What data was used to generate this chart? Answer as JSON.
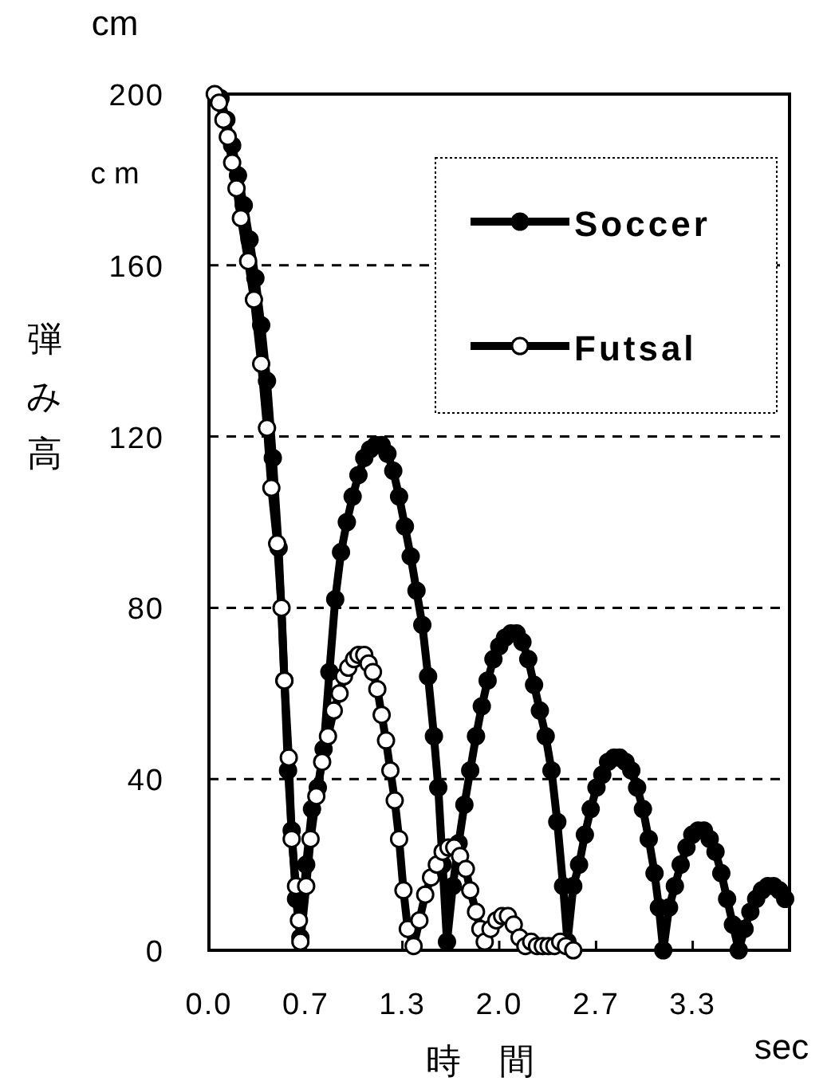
{
  "chart_data": {
    "type": "line",
    "xlabel": "時間",
    "ylabel": "弾み高",
    "annotations": [
      "cm",
      "c m",
      "sec"
    ],
    "xlim": [
      0,
      4
    ],
    "ylim": [
      0,
      200
    ],
    "xticks": [
      {
        "value": 0,
        "label": "0.0"
      },
      {
        "value": 0.667,
        "label": "0.7"
      },
      {
        "value": 1.333,
        "label": "1.3"
      },
      {
        "value": 2,
        "label": "2.0"
      },
      {
        "value": 2.667,
        "label": "2.7"
      },
      {
        "value": 3.333,
        "label": "3.3"
      }
    ],
    "yticks": [
      0,
      40,
      80,
      120,
      160,
      200
    ],
    "grid": "y",
    "legend": "top right",
    "marker": "circle",
    "line_style": "solid",
    "series": [
      {
        "name": "Soccer",
        "color": "#000000",
        "x": [
          0.08,
          0.12,
          0.16,
          0.2,
          0.24,
          0.28,
          0.32,
          0.36,
          0.4,
          0.44,
          0.48,
          0.52,
          0.545,
          0.57,
          0.6,
          0.63,
          0.67,
          0.71,
          0.75,
          0.79,
          0.83,
          0.87,
          0.91,
          0.95,
          0.99,
          1.03,
          1.07,
          1.11,
          1.15,
          1.19,
          1.23,
          1.27,
          1.31,
          1.35,
          1.39,
          1.43,
          1.47,
          1.51,
          1.55,
          1.58,
          1.61,
          1.64,
          1.68,
          1.72,
          1.76,
          1.8,
          1.84,
          1.88,
          1.92,
          1.96,
          2.0,
          2.04,
          2.08,
          2.12,
          2.16,
          2.2,
          2.24,
          2.28,
          2.32,
          2.36,
          2.4,
          2.44,
          2.47,
          2.51,
          2.55,
          2.59,
          2.63,
          2.67,
          2.71,
          2.75,
          2.79,
          2.83,
          2.87,
          2.91,
          2.95,
          2.99,
          3.03,
          3.07,
          3.1,
          3.13,
          3.17,
          3.21,
          3.25,
          3.29,
          3.33,
          3.37,
          3.41,
          3.45,
          3.49,
          3.53,
          3.57,
          3.61,
          3.65,
          3.69,
          3.73,
          3.77,
          3.81,
          3.85,
          3.89,
          3.93,
          3.97
        ],
        "values": [
          199,
          194,
          188,
          181,
          174,
          166,
          157,
          146,
          133,
          115,
          94,
          63,
          42,
          28,
          12,
          3,
          20,
          33,
          38,
          47,
          65,
          82,
          93,
          100,
          106,
          111,
          115,
          117,
          118,
          118,
          116,
          112,
          106,
          99,
          92,
          84,
          76,
          64,
          50,
          38,
          20,
          2,
          15,
          25,
          34,
          42,
          50,
          57,
          63,
          68,
          71,
          73,
          74,
          74,
          72,
          68,
          62,
          56,
          50,
          42,
          30,
          15,
          2,
          15,
          20,
          27,
          33,
          38,
          41,
          44,
          45,
          45,
          44,
          42,
          38,
          33,
          26,
          18,
          10,
          0,
          10,
          15,
          20,
          24,
          27,
          28,
          28,
          26,
          23,
          18,
          12,
          6,
          0,
          5,
          9,
          12,
          14,
          15,
          15,
          14,
          12
        ]
      },
      {
        "name": "Futsal",
        "color": "#000000",
        "x": [
          0.04,
          0.07,
          0.1,
          0.13,
          0.16,
          0.19,
          0.22,
          0.27,
          0.31,
          0.36,
          0.4,
          0.43,
          0.47,
          0.5,
          0.52,
          0.55,
          0.57,
          0.6,
          0.62,
          0.63,
          0.67,
          0.7,
          0.74,
          0.78,
          0.82,
          0.86,
          0.9,
          0.93,
          0.96,
          1.0,
          1.03,
          1.07,
          1.1,
          1.13,
          1.16,
          1.19,
          1.22,
          1.25,
          1.28,
          1.31,
          1.34,
          1.37,
          1.41,
          1.45,
          1.49,
          1.53,
          1.57,
          1.61,
          1.65,
          1.69,
          1.73,
          1.77,
          1.8,
          1.84,
          1.87,
          1.9,
          1.94,
          1.98,
          2.02,
          2.06,
          2.1,
          2.14,
          2.18,
          2.22,
          2.26,
          2.3,
          2.34,
          2.38,
          2.42,
          2.46,
          2.51
        ],
        "values": [
          200,
          198,
          194,
          190,
          184,
          178,
          171,
          161,
          152,
          137,
          122,
          108,
          95,
          80,
          63,
          45,
          26,
          15,
          7,
          2,
          15,
          26,
          36,
          44,
          50,
          56,
          60,
          64,
          66,
          68,
          69,
          69,
          67,
          65,
          61,
          55,
          49,
          42,
          35,
          26,
          14,
          5,
          1,
          7,
          13,
          17,
          20,
          23,
          24,
          24,
          22,
          19,
          14,
          9,
          5,
          2,
          5,
          7,
          8,
          8,
          6,
          3,
          1,
          2,
          1,
          1,
          1,
          1,
          2,
          1,
          0
        ]
      }
    ]
  }
}
